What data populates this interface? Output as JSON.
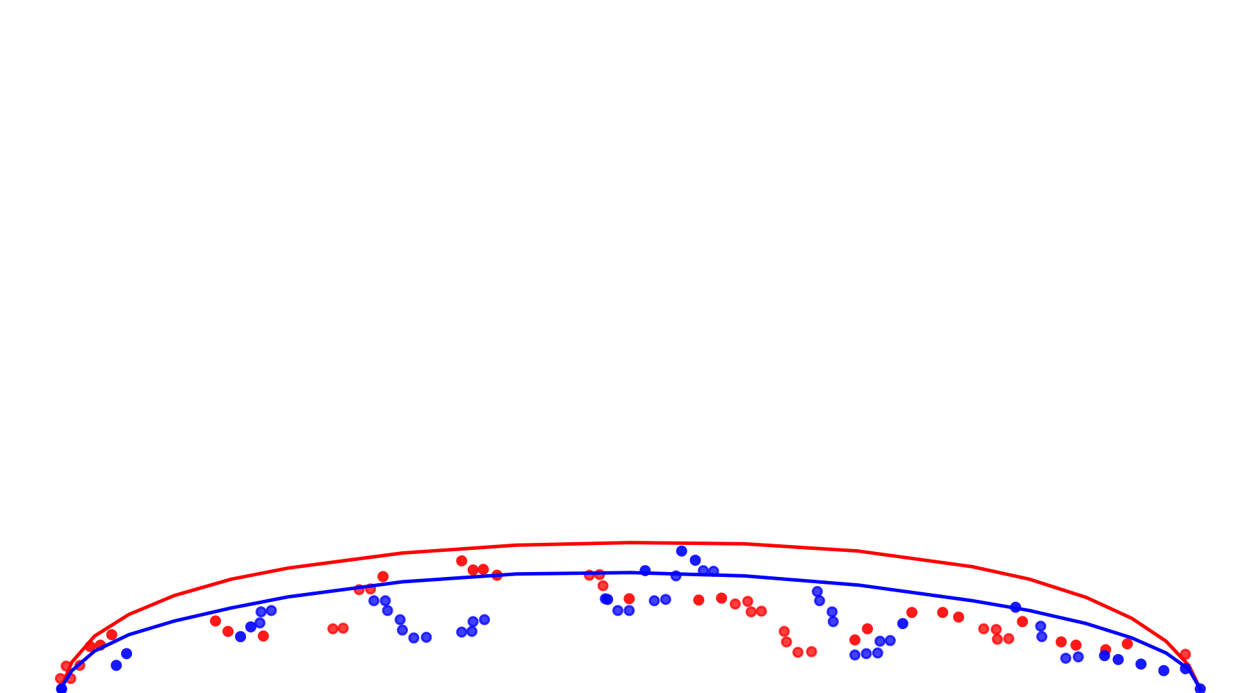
{
  "chart_data": {
    "type": "scatter",
    "title": "",
    "xlabel": "",
    "ylabel": "",
    "grid": false,
    "axes_visible": false,
    "xlim": [
      0,
      1
    ],
    "ylim": [
      0,
      1
    ],
    "series": [
      {
        "color": "#ff0000",
        "fit_curve": {
          "x": [
            0,
            0.01,
            0.03,
            0.06,
            0.1,
            0.15,
            0.2,
            0.3,
            0.4,
            0.5,
            0.6,
            0.7,
            0.8,
            0.85,
            0.9,
            0.94,
            0.97,
            0.99,
            1.0
          ],
          "y": [
            0.002,
            0.043,
            0.083,
            0.116,
            0.145,
            0.17,
            0.187,
            0.21,
            0.222,
            0.226,
            0.224,
            0.213,
            0.189,
            0.17,
            0.142,
            0.11,
            0.075,
            0.038,
            0.002
          ]
        },
        "solid_points": [
          [
            0.026,
            0.067
          ],
          [
            0.035,
            0.069
          ],
          [
            0.045,
            0.085
          ],
          [
            0.136,
            0.106
          ],
          [
            0.147,
            0.09
          ],
          [
            0.178,
            0.083
          ],
          [
            0.283,
            0.174
          ],
          [
            0.352,
            0.198
          ],
          [
            0.362,
            0.184
          ],
          [
            0.371,
            0.185
          ],
          [
            0.383,
            0.176
          ],
          [
            0.499,
            0.14
          ],
          [
            0.56,
            0.138
          ],
          [
            0.58,
            0.141
          ],
          [
            0.697,
            0.077
          ],
          [
            0.708,
            0.094
          ],
          [
            0.747,
            0.119
          ],
          [
            0.774,
            0.119
          ],
          [
            0.788,
            0.112
          ],
          [
            0.844,
            0.105
          ],
          [
            0.878,
            0.074
          ],
          [
            0.891,
            0.069
          ],
          [
            0.917,
            0.062
          ],
          [
            0.936,
            0.071
          ]
        ],
        "ringed_points": [
          [
            0.0,
            0.018
          ],
          [
            0.005,
            0.037
          ],
          [
            0.009,
            0.018
          ],
          [
            0.017,
            0.038
          ],
          [
            0.239,
            0.094
          ],
          [
            0.248,
            0.095
          ],
          [
            0.262,
            0.154
          ],
          [
            0.272,
            0.155
          ],
          [
            0.464,
            0.176
          ],
          [
            0.473,
            0.177
          ],
          [
            0.476,
            0.16
          ],
          [
            0.592,
            0.132
          ],
          [
            0.603,
            0.136
          ],
          [
            0.606,
            0.12
          ],
          [
            0.615,
            0.121
          ],
          [
            0.635,
            0.09
          ],
          [
            0.637,
            0.074
          ],
          [
            0.647,
            0.058
          ],
          [
            0.659,
            0.059
          ],
          [
            0.81,
            0.094
          ],
          [
            0.821,
            0.093
          ],
          [
            0.822,
            0.078
          ],
          [
            0.832,
            0.079
          ],
          [
            0.987,
            0.055
          ]
        ]
      },
      {
        "color": "#0000ff",
        "fit_curve": {
          "x": [
            0,
            0.01,
            0.03,
            0.06,
            0.1,
            0.15,
            0.2,
            0.3,
            0.4,
            0.5,
            0.6,
            0.7,
            0.8,
            0.85,
            0.9,
            0.94,
            0.97,
            0.99,
            1.0
          ],
          "y": [
            0.002,
            0.03,
            0.06,
            0.085,
            0.106,
            0.126,
            0.143,
            0.166,
            0.178,
            0.18,
            0.175,
            0.161,
            0.137,
            0.122,
            0.102,
            0.08,
            0.057,
            0.032,
            0.002
          ]
        },
        "solid_points": [
          [
            0.001,
            0.002
          ],
          [
            0.049,
            0.038
          ],
          [
            0.058,
            0.056
          ],
          [
            0.158,
            0.082
          ],
          [
            0.167,
            0.097
          ],
          [
            0.48,
            0.139
          ],
          [
            0.513,
            0.183
          ],
          [
            0.545,
            0.213
          ],
          [
            0.557,
            0.199
          ],
          [
            0.739,
            0.102
          ],
          [
            0.838,
            0.127
          ],
          [
            0.916,
            0.053
          ],
          [
            0.928,
            0.047
          ],
          [
            0.948,
            0.04
          ],
          [
            0.968,
            0.03
          ],
          [
            0.987,
            0.033
          ],
          [
            1.0,
            0.002
          ]
        ],
        "ringed_points": [
          [
            0.001,
            0.002
          ],
          [
            0.175,
            0.103
          ],
          [
            0.176,
            0.12
          ],
          [
            0.185,
            0.122
          ],
          [
            0.275,
            0.137
          ],
          [
            0.285,
            0.137
          ],
          [
            0.287,
            0.122
          ],
          [
            0.298,
            0.108
          ],
          [
            0.3,
            0.092
          ],
          [
            0.31,
            0.08
          ],
          [
            0.321,
            0.081
          ],
          [
            0.352,
            0.089
          ],
          [
            0.361,
            0.09
          ],
          [
            0.362,
            0.105
          ],
          [
            0.372,
            0.108
          ],
          [
            0.478,
            0.14
          ],
          [
            0.489,
            0.122
          ],
          [
            0.499,
            0.122
          ],
          [
            0.521,
            0.137
          ],
          [
            0.531,
            0.139
          ],
          [
            0.54,
            0.175
          ],
          [
            0.564,
            0.183
          ],
          [
            0.573,
            0.182
          ],
          [
            0.664,
            0.151
          ],
          [
            0.666,
            0.137
          ],
          [
            0.677,
            0.12
          ],
          [
            0.678,
            0.105
          ],
          [
            0.697,
            0.054
          ],
          [
            0.707,
            0.056
          ],
          [
            0.717,
            0.057
          ],
          [
            0.719,
            0.075
          ],
          [
            0.728,
            0.076
          ],
          [
            0.86,
            0.098
          ],
          [
            0.861,
            0.082
          ],
          [
            0.882,
            0.049
          ],
          [
            0.893,
            0.051
          ]
        ]
      }
    ]
  }
}
